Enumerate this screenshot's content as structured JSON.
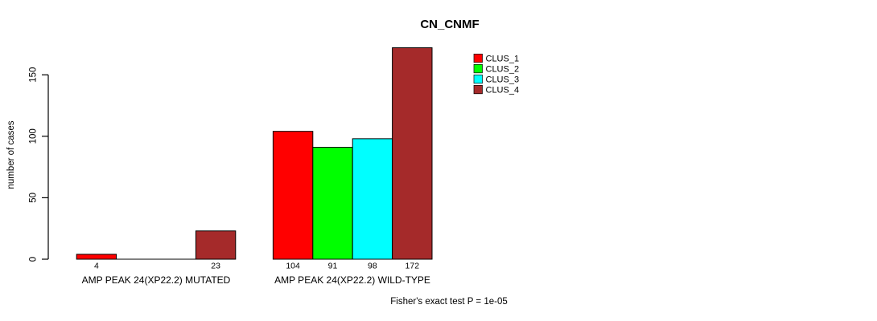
{
  "chart_data": {
    "type": "bar",
    "title": "CN_CNMF",
    "ylabel": "number of cases",
    "xlabel": "",
    "yticks": [
      0,
      50,
      100,
      150
    ],
    "ylim": [
      0,
      172
    ],
    "grid": false,
    "legend_position": "top-right-inside",
    "bar_value_labels_shown": true,
    "series": [
      {
        "name": "CLUS_1",
        "color": "#ff0000"
      },
      {
        "name": "CLUS_2",
        "color": "#00ff00"
      },
      {
        "name": "CLUS_3",
        "color": "#00ffff"
      },
      {
        "name": "CLUS_4",
        "color": "#a52a2a"
      }
    ],
    "groups": [
      {
        "label": "AMP PEAK 24(XP22.2) MUTATED",
        "values": [
          4,
          0,
          0,
          23
        ]
      },
      {
        "label": "AMP PEAK 24(XP22.2) WILD-TYPE",
        "values": [
          104,
          91,
          98,
          172
        ]
      }
    ],
    "footnote": "Fisher's exact test P = 1e-05",
    "axis_color": "#000000",
    "bar_outline_color": "#000000",
    "background_color": "#ffffff"
  }
}
